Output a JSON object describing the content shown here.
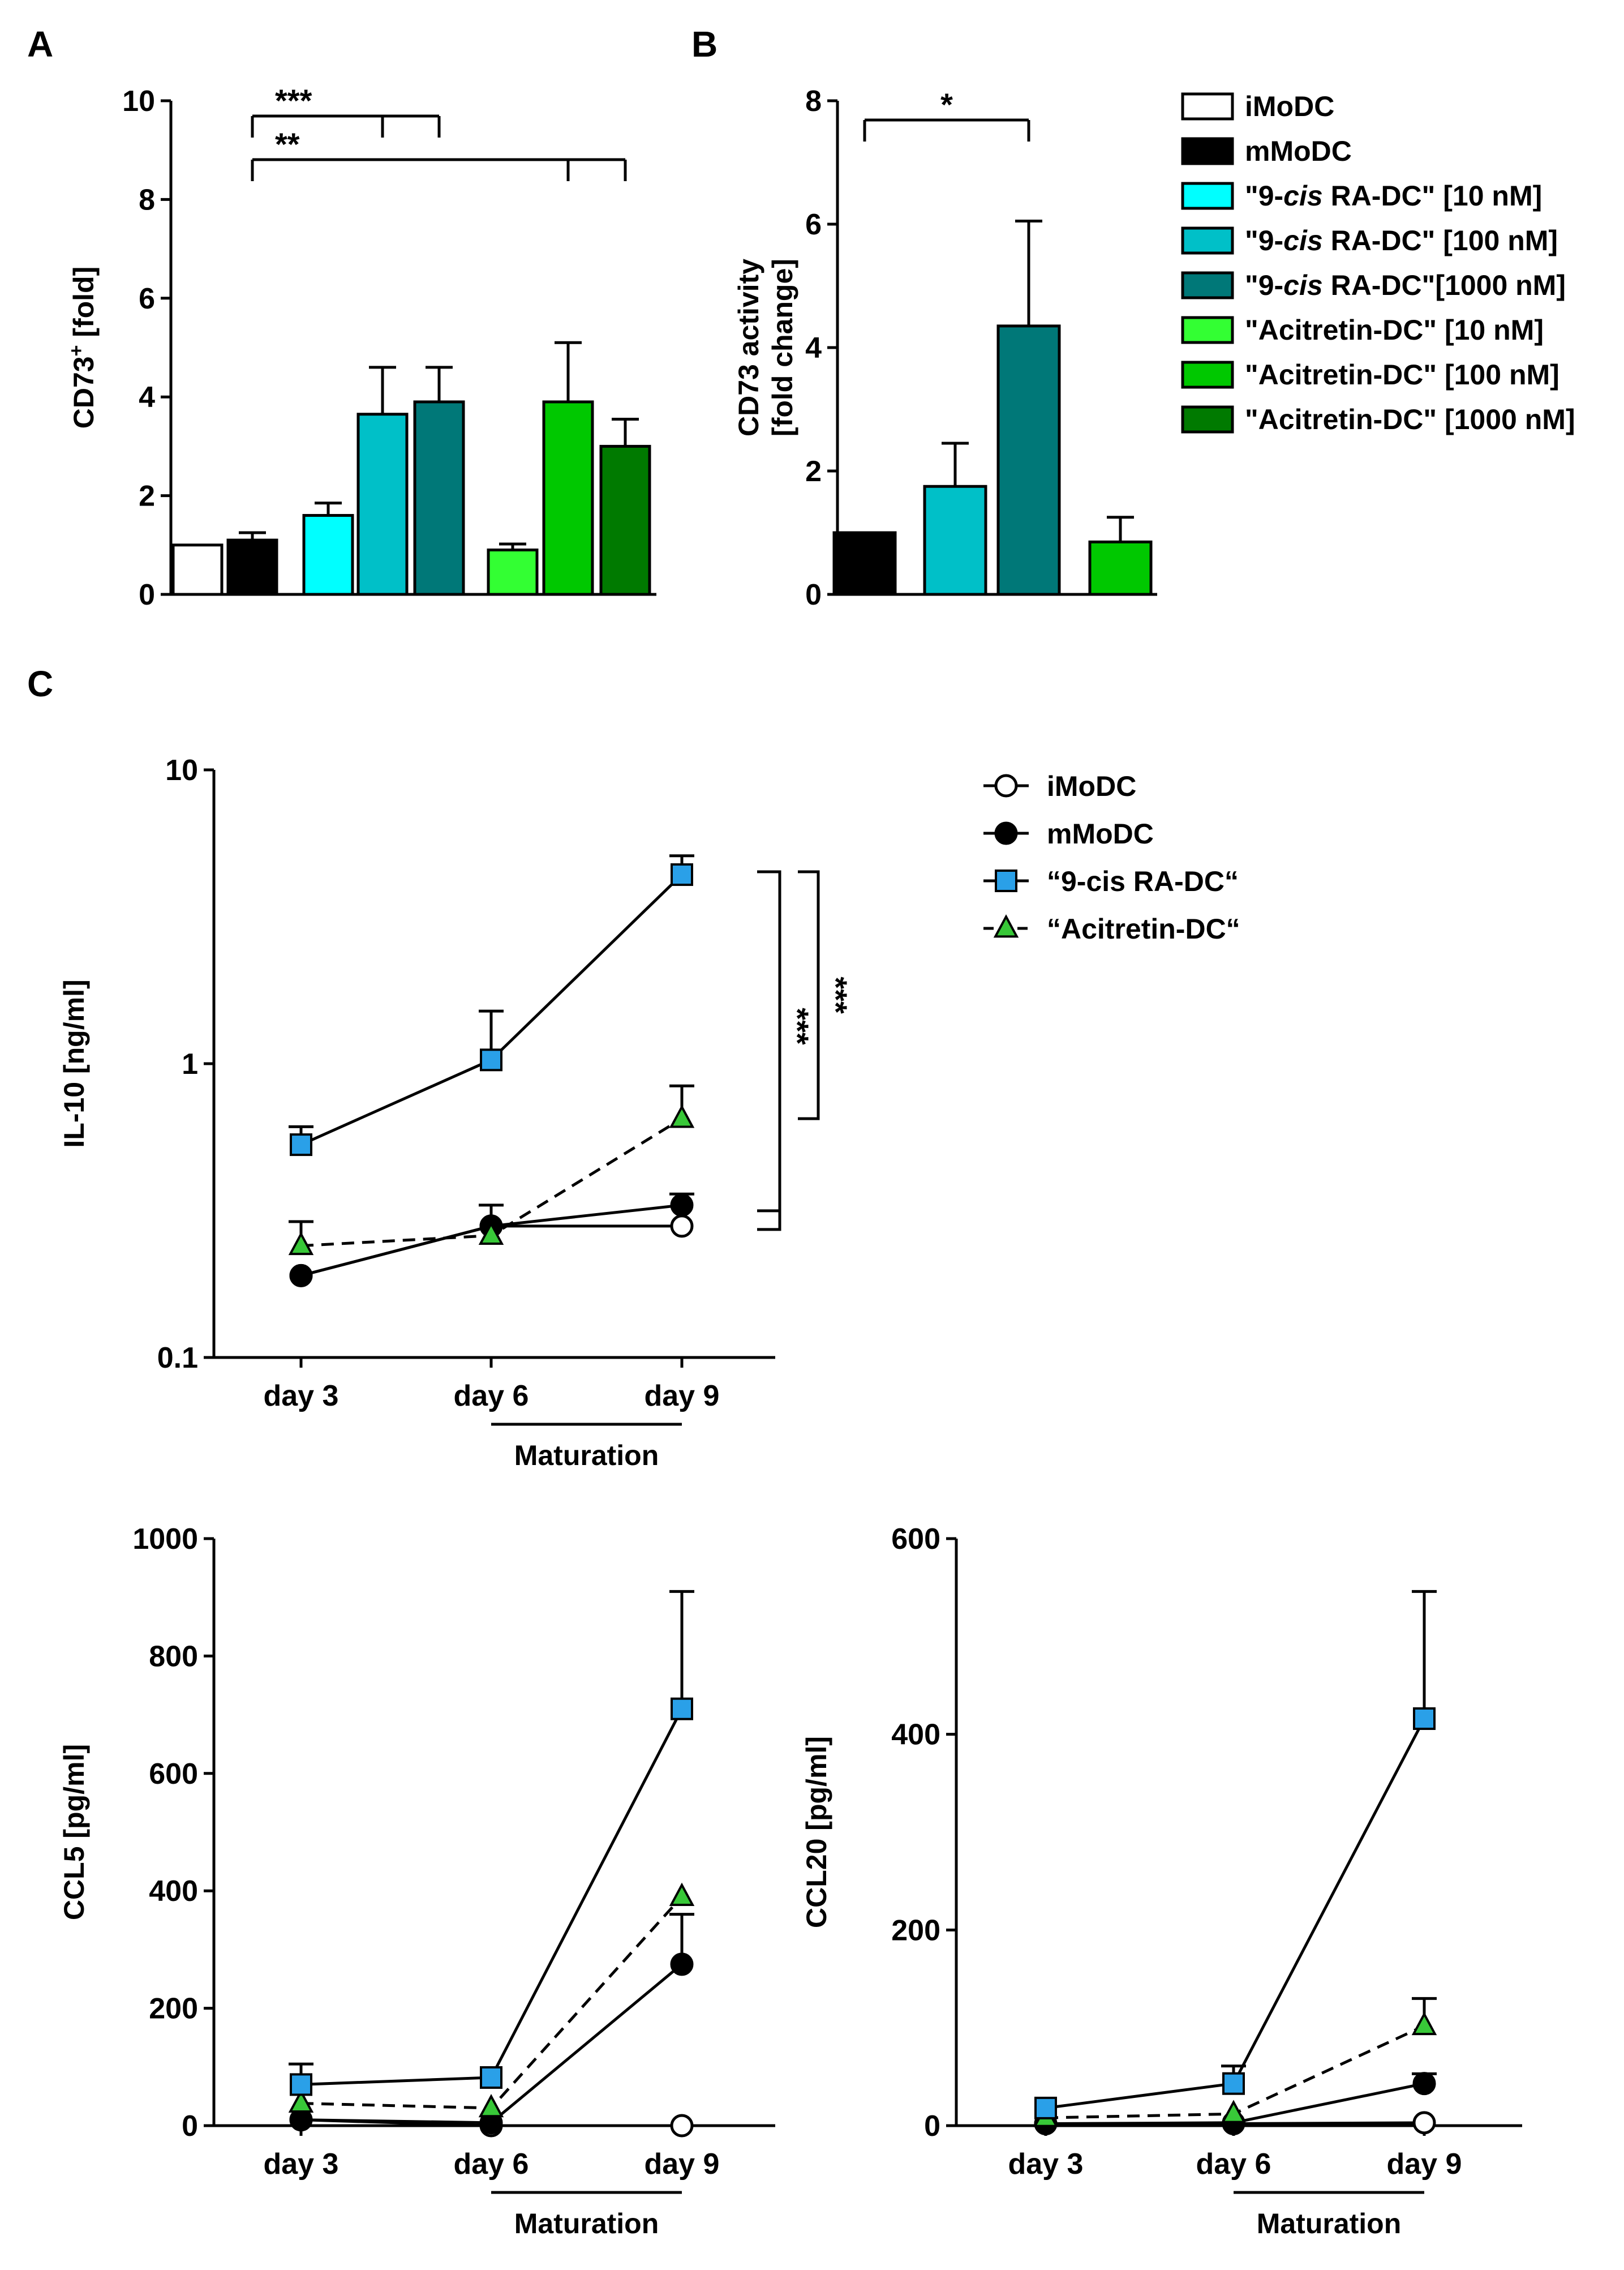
{
  "colors": {
    "imodc": "#ffffff",
    "mmodc": "#000000",
    "ra10": "#00ffff",
    "ra100": "#00c0c8",
    "ra1000": "#007878",
    "aci10": "#33ff33",
    "aci100": "#00c800",
    "aci1000": "#007a00",
    "ra_line": "#2aa0e8",
    "aci_line": "#38c838"
  },
  "panel_labels": [
    "A",
    "B",
    "C"
  ],
  "chart_data": [
    {
      "id": "A",
      "type": "bar",
      "title": "",
      "ylabel_main": "CD73",
      "ylabel_sup": "+",
      "ylabel_rest": " [fold]",
      "ylim": [
        0,
        10
      ],
      "yticks": [
        0,
        2,
        4,
        6,
        8,
        10
      ],
      "bars": [
        {
          "name": "iMoDC",
          "color_key": "imodc",
          "value": 1.0,
          "error": 0
        },
        {
          "name": "mMoDC",
          "color_key": "mmodc",
          "value": 1.1,
          "error": 0.15
        },
        {
          "name": "9-cis RA-DC 10 nM",
          "color_key": "ra10",
          "value": 1.6,
          "error": 0.25
        },
        {
          "name": "9-cis RA-DC 100 nM",
          "color_key": "ra100",
          "value": 3.65,
          "error": 0.95
        },
        {
          "name": "9-cis RA-DC 1000 nM",
          "color_key": "ra1000",
          "value": 3.9,
          "error": 0.7
        },
        {
          "name": "Acitretin-DC 10 nM",
          "color_key": "aci10",
          "value": 0.9,
          "error": 0.12
        },
        {
          "name": "Acitretin-DC 100 nM",
          "color_key": "aci100",
          "value": 3.9,
          "error": 1.2
        },
        {
          "name": "Acitretin-DC 1000 nM",
          "color_key": "aci1000",
          "value": 3.0,
          "error": 0.55
        }
      ],
      "significance": [
        {
          "label": "***",
          "from": 1,
          "to": [
            3,
            4
          ]
        },
        {
          "label": "**",
          "from": 1,
          "to": [
            6,
            7
          ]
        }
      ]
    },
    {
      "id": "B",
      "type": "bar",
      "ylabel_line1": "CD73 activity",
      "ylabel_line2": "[fold change]",
      "ylim": [
        0,
        8
      ],
      "yticks": [
        0,
        2,
        4,
        6,
        8
      ],
      "bars": [
        {
          "name": "mMoDC",
          "color_key": "mmodc",
          "value": 1.0,
          "error": 0
        },
        {
          "name": "9-cis RA-DC 100 nM",
          "color_key": "ra100",
          "value": 1.75,
          "error": 0.7
        },
        {
          "name": "9-cis RA-DC 1000 nM",
          "color_key": "ra1000",
          "value": 4.35,
          "error": 1.7
        },
        {
          "name": "Acitretin-DC 100 nM",
          "color_key": "aci100",
          "value": 0.85,
          "error": 0.4
        }
      ],
      "significance": [
        {
          "label": "*",
          "from": 0,
          "to": [
            2
          ]
        }
      ]
    },
    {
      "id": "C-IL10",
      "type": "line",
      "yscale": "log",
      "ylabel": "IL-10 [ng/ml]",
      "ylim": [
        0.1,
        10
      ],
      "yticks": [
        0.1,
        1,
        10
      ],
      "ytick_labels": [
        "0.1",
        "1",
        "10"
      ],
      "categories": [
        "day 3",
        "day 6",
        "day 9"
      ],
      "series": [
        {
          "name": "iMoDC",
          "marker": "circle",
          "fill": "#ffffff",
          "dashed": false,
          "values": [
            0.19,
            0.28,
            0.28
          ],
          "errors": [
            0,
            0.05,
            0
          ]
        },
        {
          "name": "mMoDC",
          "marker": "circle",
          "fill": "#000000",
          "dashed": false,
          "values": [
            0.19,
            0.28,
            0.33
          ],
          "errors": [
            0,
            0,
            0.03
          ]
        },
        {
          "name": "9-cis RA-DC",
          "marker": "square",
          "fill": "#2aa0e8",
          "dashed": false,
          "values": [
            0.53,
            1.03,
            4.4
          ],
          "errors": [
            0.08,
            0.48,
            0.7
          ]
        },
        {
          "name": "Acitretin-DC",
          "marker": "triangle",
          "fill": "#38c838",
          "dashed": true,
          "values": [
            0.24,
            0.26,
            0.65
          ],
          "errors": [
            0.05,
            0,
            0.19
          ]
        }
      ],
      "significance_label": "***",
      "maturation_label": "Maturation"
    },
    {
      "id": "C-CCL5",
      "type": "line",
      "ylabel": "CCL5 [pg/ml]",
      "ylim": [
        0,
        1000
      ],
      "yticks": [
        0,
        200,
        400,
        600,
        800,
        1000
      ],
      "categories": [
        "day 3",
        "day 6",
        "day 9"
      ],
      "series": [
        {
          "name": "iMoDC",
          "marker": "circle",
          "fill": "#ffffff",
          "dashed": false,
          "values": [
            10,
            0,
            0
          ],
          "errors": [
            0,
            0,
            0
          ]
        },
        {
          "name": "mMoDC",
          "marker": "circle",
          "fill": "#000000",
          "dashed": false,
          "values": [
            10,
            5,
            275
          ],
          "errors": [
            0,
            0,
            85
          ]
        },
        {
          "name": "9-cis RA-DC",
          "marker": "square",
          "fill": "#2aa0e8",
          "dashed": false,
          "values": [
            70,
            82,
            710
          ],
          "errors": [
            35,
            0,
            200
          ]
        },
        {
          "name": "Acitretin-DC",
          "marker": "triangle",
          "fill": "#38c838",
          "dashed": true,
          "values": [
            38,
            30,
            390
          ],
          "errors": [
            0,
            0,
            0
          ]
        }
      ],
      "maturation_label": "Maturation"
    },
    {
      "id": "C-CCL20",
      "type": "line",
      "ylabel": "CCL20 [pg/ml]",
      "ylim": [
        0,
        600
      ],
      "yticks": [
        0,
        200,
        400,
        600
      ],
      "categories": [
        "day 3",
        "day 6",
        "day 9"
      ],
      "series": [
        {
          "name": "iMoDC",
          "marker": "circle",
          "fill": "#ffffff",
          "dashed": false,
          "values": [
            2,
            2,
            3
          ],
          "errors": [
            0,
            0,
            0
          ]
        },
        {
          "name": "mMoDC",
          "marker": "circle",
          "fill": "#000000",
          "dashed": false,
          "values": [
            2,
            3,
            43
          ],
          "errors": [
            0,
            0,
            10
          ]
        },
        {
          "name": "9-cis RA-DC",
          "marker": "square",
          "fill": "#2aa0e8",
          "dashed": false,
          "values": [
            18,
            43,
            416
          ],
          "errors": [
            0,
            18,
            130
          ]
        },
        {
          "name": "Acitretin-DC",
          "marker": "triangle",
          "fill": "#38c838",
          "dashed": true,
          "values": [
            8,
            12,
            102
          ],
          "errors": [
            0,
            0,
            28
          ]
        }
      ],
      "maturation_label": "Maturation"
    }
  ],
  "legend_top": [
    {
      "pre": "iMoDC",
      "italic": "",
      "post": "",
      "color_key": "imodc"
    },
    {
      "pre": "mMoDC",
      "italic": "",
      "post": "",
      "color_key": "mmodc"
    },
    {
      "pre": "\"9-",
      "italic": "cis",
      "post": " RA-DC\" [10 nM]",
      "color_key": "ra10"
    },
    {
      "pre": "\"9-",
      "italic": "cis",
      "post": " RA-DC\" [100 nM]",
      "color_key": "ra100"
    },
    {
      "pre": "\"9-",
      "italic": "cis",
      "post": " RA-DC\"[1000 nM]",
      "color_key": "ra1000"
    },
    {
      "pre": "\"Acitretin-DC\" [10 nM]",
      "italic": "",
      "post": "",
      "color_key": "aci10"
    },
    {
      "pre": "\"Acitretin-DC\" [100 nM]",
      "italic": "",
      "post": "",
      "color_key": "aci100"
    },
    {
      "pre": "\"Acitretin-DC\" [1000 nM]",
      "italic": "",
      "post": "",
      "color_key": "aci1000"
    }
  ],
  "legend_line": [
    {
      "label": "iMoDC",
      "marker": "circle",
      "fill": "#ffffff",
      "dashed": false
    },
    {
      "label": "mMoDC",
      "marker": "circle",
      "fill": "#000000",
      "dashed": false
    },
    {
      "label": "“9-cis RA-DC“",
      "marker": "square",
      "fill": "#2aa0e8",
      "dashed": false
    },
    {
      "label": "“Acitretin-DC“",
      "marker": "triangle",
      "fill": "#38c838",
      "dashed": true
    }
  ]
}
